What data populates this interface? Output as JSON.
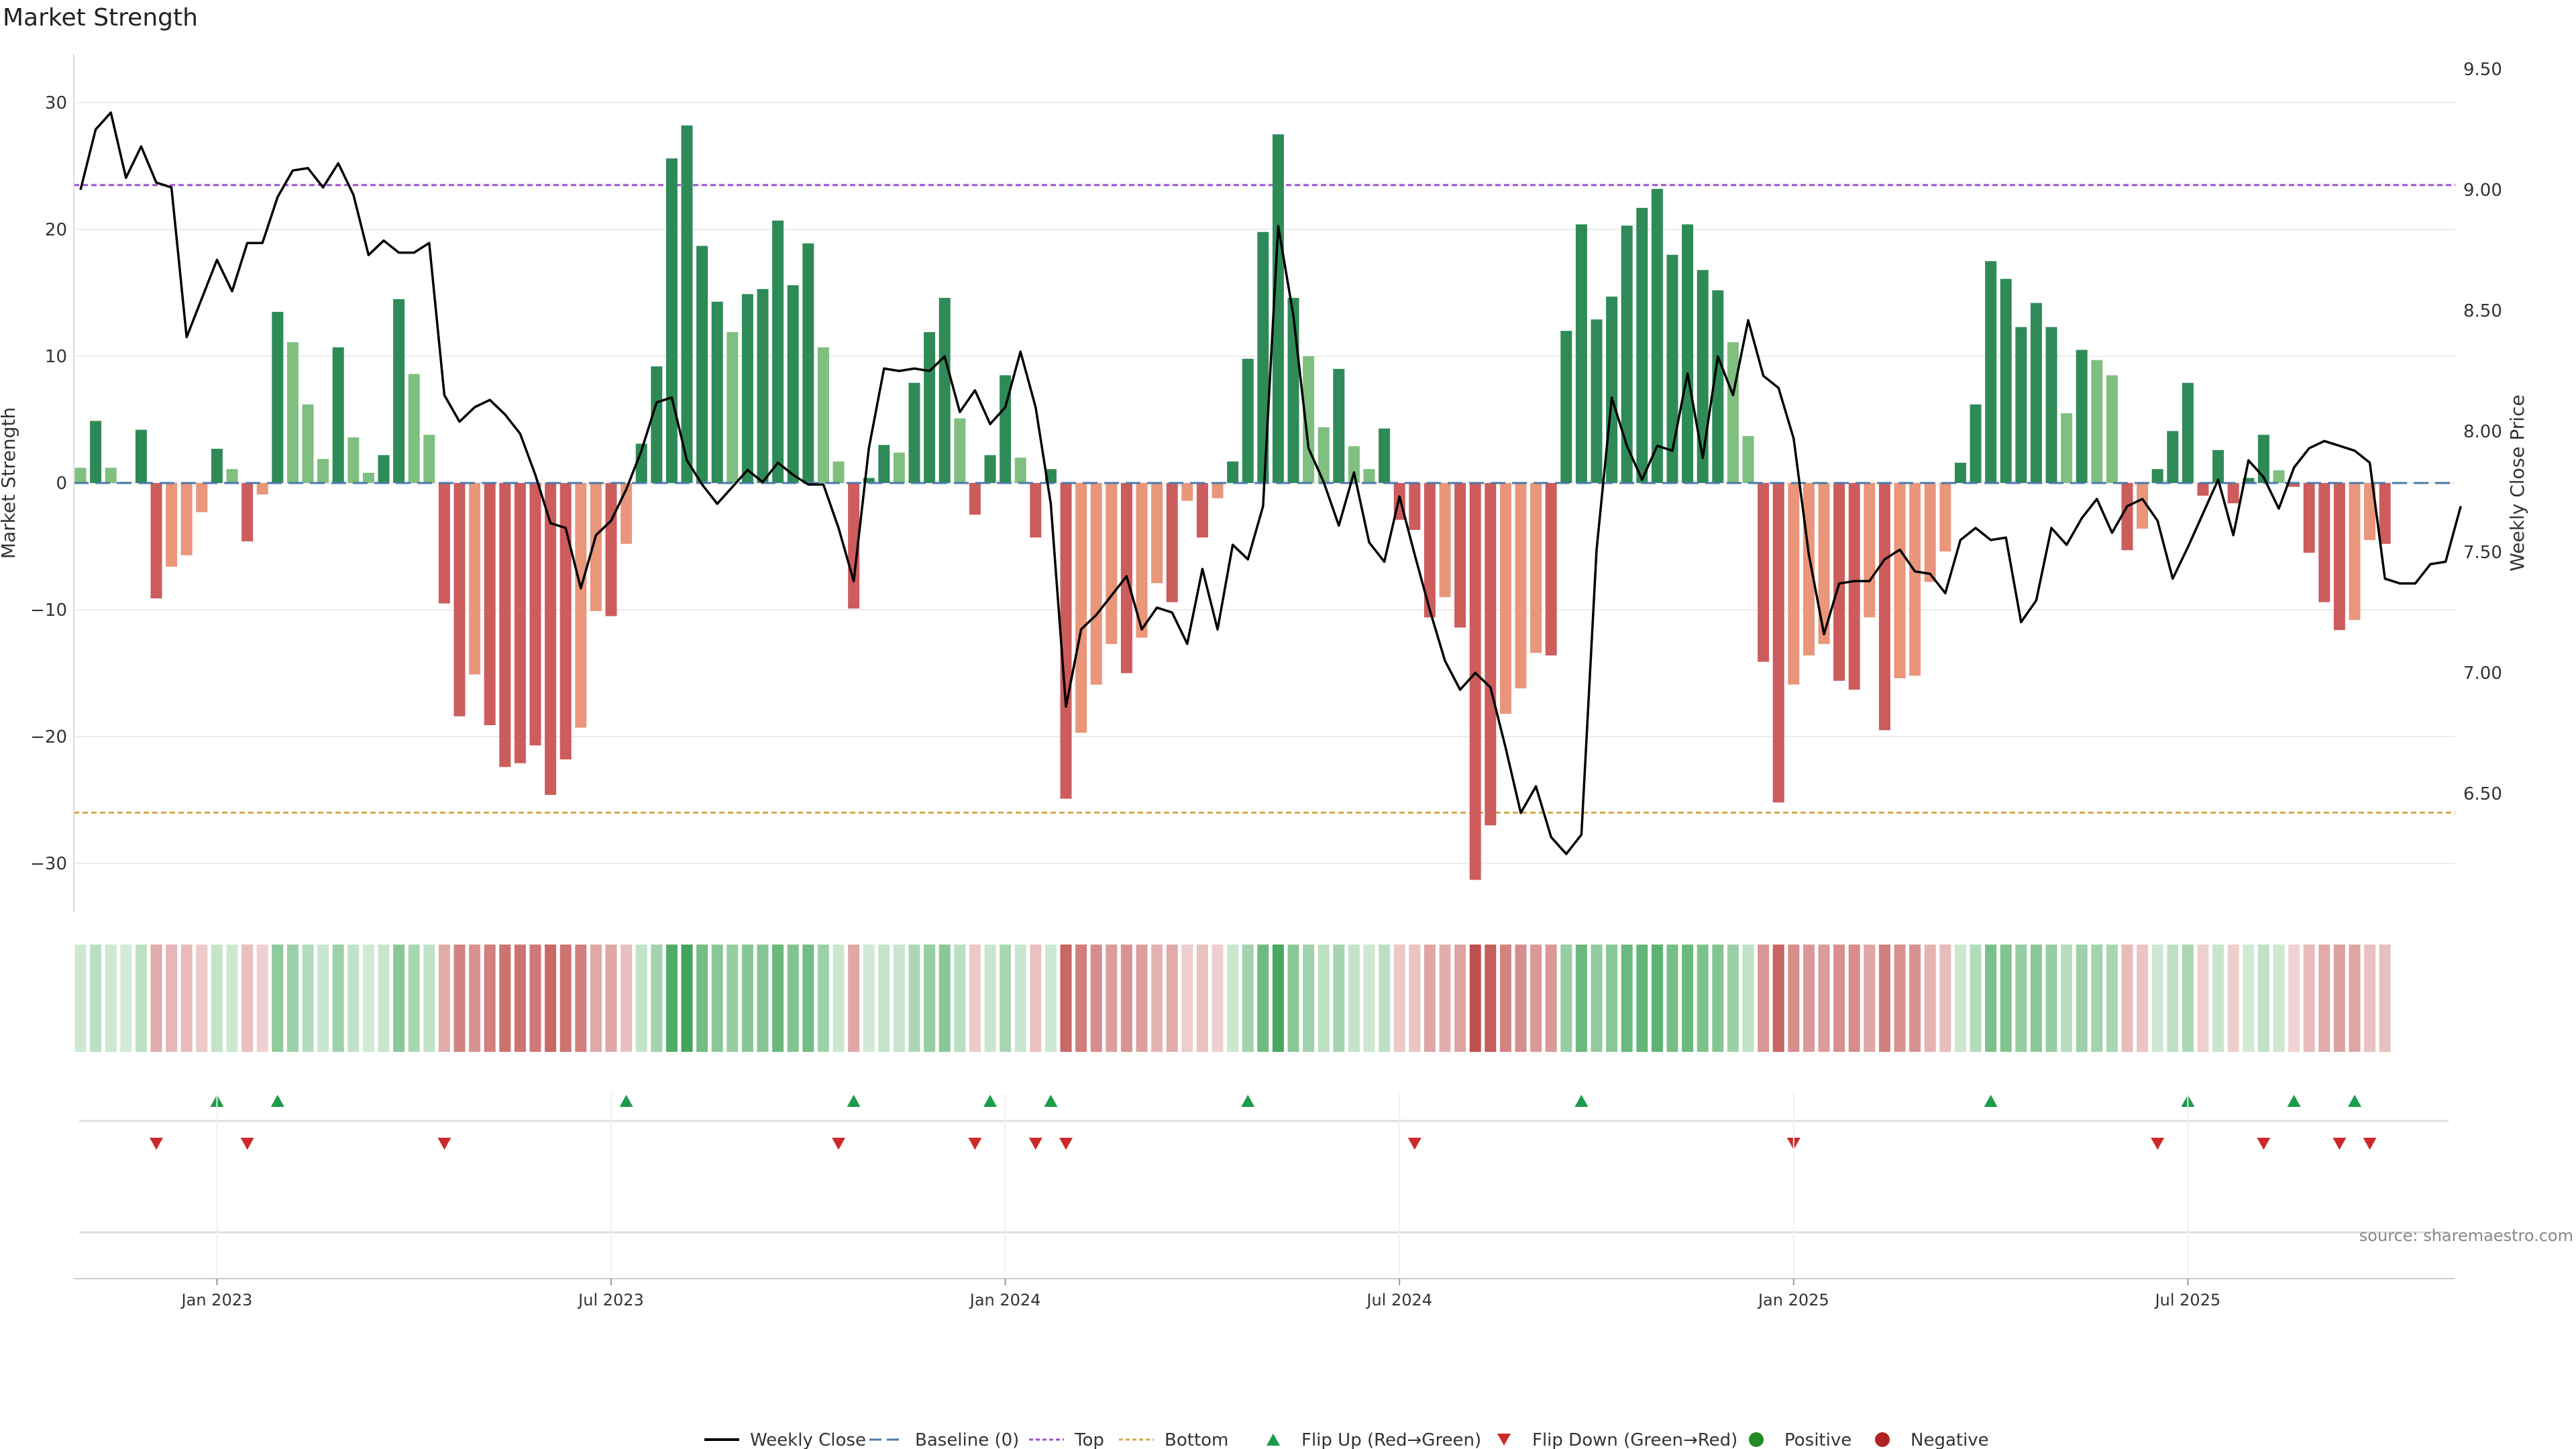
{
  "chart_data": {
    "type": "bar",
    "title": "Market Strength",
    "ylabel": "Market Strength",
    "y2label": "Weekly Close Price",
    "source": "source: sharemaestro.com",
    "ylim": [
      -34,
      34
    ],
    "y2lim": [
      6.05,
      9.55
    ],
    "yticks": [
      "30",
      "20",
      "10",
      "0",
      "−10",
      "−20",
      "−30"
    ],
    "yticks_values": [
      30,
      20,
      10,
      0,
      -10,
      -20,
      -30
    ],
    "y2ticks": [
      "9.50",
      "9.00",
      "8.50",
      "8.00",
      "7.50",
      "7.00",
      "6.50"
    ],
    "y2ticks_values": [
      9.5,
      9.0,
      8.5,
      8.0,
      7.5,
      7.0,
      6.5
    ],
    "xticks": [
      "Jan 2023",
      "Jul 2023",
      "Jan 2024",
      "Jul 2024",
      "Jan 2025",
      "Jul 2025"
    ],
    "xticks_week_index": [
      9,
      35,
      61,
      87,
      113,
      139
    ],
    "top_line": 23.5,
    "bottom_line": -26,
    "strength": [
      1.2,
      4.9,
      1.2,
      0.1,
      4.2,
      -9.1,
      -6.6,
      -5.7,
      -2.3,
      2.7,
      1.1,
      -4.6,
      -0.9,
      13.5,
      11.1,
      6.2,
      1.9,
      10.7,
      3.6,
      0.8,
      2.2,
      14.5,
      8.6,
      3.8,
      -9.5,
      -18.4,
      -15.1,
      -19.1,
      -22.4,
      -22.1,
      -20.7,
      -24.6,
      -21.8,
      -19.3,
      -10.1,
      -10.5,
      -4.8,
      3.1,
      9.2,
      25.6,
      28.2,
      18.7,
      14.3,
      11.9,
      14.9,
      15.3,
      20.7,
      15.6,
      18.9,
      10.7,
      1.7,
      -9.9,
      0.4,
      3.0,
      2.4,
      7.9,
      11.9,
      14.6,
      5.1,
      -2.5,
      2.2,
      8.5,
      2.0,
      -4.3,
      1.1,
      -24.9,
      -19.7,
      -15.9,
      -12.7,
      -15.0,
      -12.2,
      -7.9,
      -9.4,
      -1.4,
      -4.3,
      -1.2,
      1.7,
      9.8,
      19.8,
      27.5,
      14.6,
      10.0,
      4.4,
      9.0,
      2.9,
      1.1,
      4.3,
      -2.9,
      -3.7,
      -10.6,
      -9.0,
      -11.4,
      -31.3,
      -27.0,
      -18.2,
      -16.2,
      -13.4,
      -13.6,
      12.0,
      20.4,
      12.9,
      14.7,
      20.3,
      21.7,
      23.2,
      18.0,
      20.4,
      16.8,
      15.2,
      11.1,
      3.7,
      -14.1,
      -25.2,
      -15.9,
      -13.6,
      -12.7,
      -15.6,
      -16.3,
      -10.6,
      -19.5,
      -15.4,
      -15.2,
      -7.8,
      -5.4,
      1.6,
      6.2,
      17.5,
      16.1,
      12.3,
      14.2,
      12.3,
      5.5,
      10.5,
      9.7,
      8.5,
      -5.3,
      -3.6,
      1.1,
      4.1,
      7.9,
      -1.0,
      2.6,
      -1.6,
      0.4,
      3.8,
      1.0,
      -0.3,
      -5.5,
      -9.4,
      -11.6,
      -10.8,
      -4.5,
      -4.8
    ],
    "price": [
      9.0,
      9.25,
      9.32,
      9.05,
      9.18,
      9.03,
      9.01,
      8.39,
      8.55,
      8.71,
      8.58,
      8.78,
      8.78,
      8.97,
      9.08,
      9.09,
      9.01,
      9.11,
      8.98,
      8.73,
      8.79,
      8.74,
      8.74,
      8.78,
      8.15,
      8.04,
      8.1,
      8.13,
      8.07,
      7.99,
      7.82,
      7.62,
      7.6,
      7.35,
      7.57,
      7.63,
      7.76,
      7.92,
      8.12,
      8.14,
      7.88,
      7.78,
      7.7,
      7.77,
      7.84,
      7.79,
      7.87,
      7.82,
      7.78,
      7.78,
      7.6,
      7.38,
      7.93,
      8.26,
      8.25,
      8.26,
      8.25,
      8.31,
      8.08,
      8.17,
      8.03,
      8.1,
      8.33,
      8.1,
      7.7,
      6.86,
      7.18,
      7.24,
      7.32,
      7.4,
      7.18,
      7.27,
      7.25,
      7.12,
      7.43,
      7.18,
      7.53,
      7.47,
      7.69,
      8.85,
      8.48,
      7.93,
      7.79,
      7.61,
      7.83,
      7.54,
      7.46,
      7.73,
      7.49,
      7.26,
      7.05,
      6.93,
      7.0,
      6.94,
      6.69,
      6.42,
      6.53,
      6.32,
      6.25,
      6.33,
      7.51,
      8.14,
      7.94,
      7.8,
      7.94,
      7.92,
      8.24,
      7.89,
      8.31,
      8.15,
      8.46,
      8.23,
      8.18,
      7.97,
      7.49,
      7.16,
      7.37,
      7.38,
      7.38,
      7.47,
      7.51,
      7.42,
      7.41,
      7.33,
      7.55,
      7.6,
      7.55,
      7.56,
      7.21,
      7.3,
      7.6,
      7.53,
      7.64,
      7.72,
      7.58,
      7.69,
      7.72,
      7.63,
      7.39,
      7.52,
      7.66,
      7.8,
      7.57,
      7.88,
      7.81,
      7.68,
      7.85,
      7.93,
      7.96,
      7.94,
      7.92,
      7.87,
      7.39,
      7.37,
      7.37,
      7.45,
      7.46,
      7.69
    ],
    "flip_up_weeks": [
      9,
      13,
      36,
      51,
      60,
      64,
      77,
      99,
      126,
      139,
      146,
      150
    ],
    "flip_down_weeks": [
      5,
      11,
      24,
      50,
      59,
      63,
      65,
      88,
      113,
      137,
      144,
      149,
      151
    ],
    "legend": [
      "Weekly Close",
      "Baseline (0)",
      "Top",
      "Bottom",
      "Flip Up (Red→Green)",
      "Flip Down (Green→Red)",
      "Positive",
      "Negative"
    ],
    "colors": {
      "strong_pos": "#2e8b57",
      "weak_pos": "#7fbf7f",
      "strong_neg": "#cd5c5c",
      "weak_neg": "#e9967a",
      "price": "#000000",
      "baseline": "#4a7aa8",
      "top": "#9b4fd1",
      "bottom": "#d4a84a",
      "flip_up": "#1a9c4a",
      "flip_down": "#cc2a2a",
      "positive": "#228b22",
      "negative": "#b22222",
      "grid": "#ececec"
    }
  }
}
